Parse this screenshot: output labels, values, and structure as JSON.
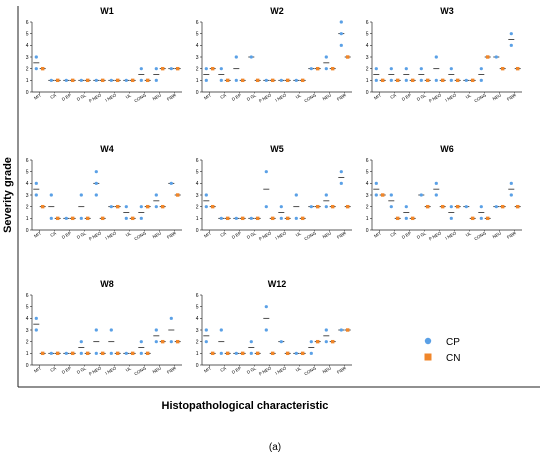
{
  "figure": {
    "ylabel": "Severity grade",
    "xlabel": "Histopathological characteristic",
    "caption": "(a)"
  },
  "legend": {
    "placement": "right",
    "items": [
      {
        "label": "CP",
        "color": "#5aa0e6"
      },
      {
        "label": "CN",
        "color": "#f0862a"
      }
    ]
  },
  "colors": {
    "CP": "#5aa0e6",
    "CN": "#f0862a",
    "axis": "#222222",
    "mean": "#222222"
  },
  "chart_data": {
    "type": "scatter",
    "categories": [
      "MIT",
      "CA",
      "D EP",
      "D GL",
      "P NEO",
      "I NEO",
      "UL",
      "CONG",
      "NEU",
      "FIBR"
    ],
    "yticks": [
      "0",
      "1",
      "2",
      "3",
      "4",
      "5",
      "6"
    ],
    "ylim": [
      0,
      6
    ],
    "grid": false,
    "panels": [
      {
        "title": "W1",
        "CP": [
          [
            2,
            3
          ],
          [
            1
          ],
          [
            1
          ],
          [
            1
          ],
          [
            1
          ],
          [
            1
          ],
          [
            1
          ],
          [
            2,
            1
          ],
          [
            2,
            1
          ],
          [
            2
          ]
        ],
        "CN": [
          [
            2
          ],
          [
            1
          ],
          [
            1
          ],
          [
            1
          ],
          [
            1
          ],
          [
            1
          ],
          [
            1
          ],
          [
            1
          ],
          [
            2
          ],
          [
            2
          ]
        ]
      },
      {
        "title": "W2",
        "CP": [
          [
            2,
            1
          ],
          [
            2,
            1
          ],
          [
            3,
            1
          ],
          [
            3
          ],
          [
            1
          ],
          [
            1
          ],
          [
            1
          ],
          [
            2
          ],
          [
            3,
            2
          ],
          [
            6,
            5,
            4
          ]
        ],
        "CN": [
          [
            2
          ],
          [
            1
          ],
          [
            1
          ],
          [
            1
          ],
          [
            1
          ],
          [
            1
          ],
          [
            1
          ],
          [
            2
          ],
          [
            2
          ],
          [
            3
          ]
        ]
      },
      {
        "title": "W3",
        "CP": [
          [
            2,
            1
          ],
          [
            2,
            1
          ],
          [
            2,
            1
          ],
          [
            2,
            1
          ],
          [
            3,
            1
          ],
          [
            2,
            1
          ],
          [
            1
          ],
          [
            2,
            1
          ],
          [
            3
          ],
          [
            5,
            4
          ]
        ],
        "CN": [
          [
            1
          ],
          [
            1
          ],
          [
            1
          ],
          [
            1
          ],
          [
            1
          ],
          [
            1
          ],
          [
            1
          ],
          [
            3
          ],
          [
            2
          ],
          [
            2
          ]
        ]
      },
      {
        "title": "W4",
        "CP": [
          [
            4,
            3
          ],
          [
            3,
            1
          ],
          [
            1
          ],
          [
            3,
            1
          ],
          [
            5,
            4,
            3
          ],
          [
            2
          ],
          [
            2,
            1
          ],
          [
            2,
            1
          ],
          [
            3,
            2
          ],
          [
            4
          ]
        ],
        "CN": [
          [
            2
          ],
          [
            1
          ],
          [
            1
          ],
          [
            1
          ],
          [
            1
          ],
          [
            2
          ],
          [
            1
          ],
          [
            2
          ],
          [
            2
          ],
          [
            3
          ]
        ]
      },
      {
        "title": "W5",
        "CP": [
          [
            3,
            2
          ],
          [
            1
          ],
          [
            1
          ],
          [
            1
          ],
          [
            5,
            2
          ],
          [
            2,
            1
          ],
          [
            3,
            1
          ],
          [
            2
          ],
          [
            3,
            2
          ],
          [
            5,
            4
          ]
        ],
        "CN": [
          [
            2
          ],
          [
            1
          ],
          [
            1
          ],
          [
            1
          ],
          [
            1
          ],
          [
            1
          ],
          [
            1
          ],
          [
            2
          ],
          [
            2
          ],
          [
            2
          ]
        ]
      },
      {
        "title": "W6",
        "CP": [
          [
            4,
            3
          ],
          [
            3,
            2
          ],
          [
            2,
            1
          ],
          [
            3
          ],
          [
            4,
            3
          ],
          [
            2,
            1
          ],
          [
            2
          ],
          [
            2,
            1
          ],
          [
            2
          ],
          [
            4,
            3
          ]
        ],
        "CN": [
          [
            3
          ],
          [
            1
          ],
          [
            1
          ],
          [
            2
          ],
          [
            2
          ],
          [
            2
          ],
          [
            1
          ],
          [
            1
          ],
          [
            2
          ],
          [
            2
          ]
        ]
      },
      {
        "title": "W8",
        "CP": [
          [
            4,
            3
          ],
          [
            1
          ],
          [
            1
          ],
          [
            2,
            1
          ],
          [
            3,
            1
          ],
          [
            3,
            1
          ],
          [
            1
          ],
          [
            2,
            1
          ],
          [
            3,
            2
          ],
          [
            4,
            2
          ]
        ],
        "CN": [
          [
            1
          ],
          [
            1
          ],
          [
            1
          ],
          [
            1
          ],
          [
            1
          ],
          [
            1
          ],
          [
            1
          ],
          [
            1
          ],
          [
            2
          ],
          [
            2
          ]
        ]
      },
      {
        "title": "W12",
        "CP": [
          [
            3,
            2
          ],
          [
            3,
            1
          ],
          [
            1
          ],
          [
            2,
            1
          ],
          [
            5,
            3
          ],
          [
            2
          ],
          [
            1
          ],
          [
            2,
            1
          ],
          [
            3,
            2
          ],
          [
            3
          ]
        ],
        "CN": [
          [
            1
          ],
          [
            1
          ],
          [
            1
          ],
          [
            1
          ],
          [
            1
          ],
          [
            1
          ],
          [
            1
          ],
          [
            2
          ],
          [
            2
          ],
          [
            3
          ]
        ]
      }
    ]
  }
}
